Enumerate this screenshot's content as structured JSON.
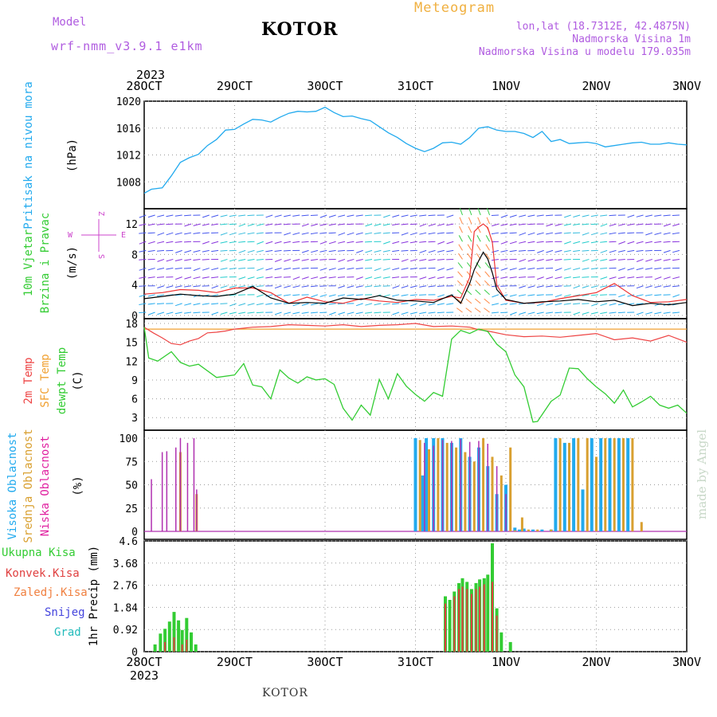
{
  "header": {
    "model_label": "Model",
    "model_name": "wrf-nmm_v3.9.1  e1km",
    "station": "KOTOR",
    "title": "Meteogram",
    "lonlat": "lon,lat (18.7312E, 42.4875N)",
    "elevation": "Nadmorska Visina 1m",
    "model_elevation": "Nadmorska Visina u modelu 179.035m",
    "year_top": "2023",
    "year_bottom": "2023",
    "footer_station": "KOTOR",
    "credit": "made by Angel"
  },
  "colors": {
    "pressure": "#22aaee",
    "temp2m": "#ee4444",
    "sfc": "#f0a030",
    "dewpoint": "#33cc33",
    "cloud_high": "#22aaee",
    "cloud_mid": "#d9a030",
    "cloud_low": "#b030b0",
    "precip_total": "#33cc33",
    "precip_conv": "#e04040",
    "wind_dir_key": "#cc44cc"
  },
  "chart_data": [
    {
      "panel": "pressure",
      "type": "line",
      "ylabel_lines": [
        "Pritisak na nivou mora",
        "(hPa)"
      ],
      "x_ticks": [
        "28OCT",
        "29OCT",
        "30OCT",
        "31OCT",
        "1NOV",
        "2NOV",
        "3NOV"
      ],
      "ylim": [
        1004,
        1020
      ],
      "y_ticks": [
        1008,
        1012,
        1016,
        1020
      ],
      "x": [
        0,
        0.08,
        0.2,
        0.3,
        0.4,
        0.5,
        0.6,
        0.7,
        0.8,
        0.9,
        1.0,
        1.1,
        1.2,
        1.3,
        1.4,
        1.5,
        1.6,
        1.7,
        1.8,
        1.9,
        2.0,
        2.1,
        2.2,
        2.3,
        2.4,
        2.5,
        2.6,
        2.7,
        2.8,
        2.9,
        3.0,
        3.1,
        3.2,
        3.3,
        3.4,
        3.5,
        3.6,
        3.7,
        3.8,
        3.9,
        4.0,
        4.1,
        4.2,
        4.3,
        4.4,
        4.5,
        4.6,
        4.7,
        4.8,
        4.9,
        5.0,
        5.1,
        5.2,
        5.3,
        5.4,
        5.5,
        5.6,
        5.7,
        5.8,
        5.9,
        6.0
      ],
      "y": [
        1006.3,
        1006.9,
        1007.1,
        1008.9,
        1010.9,
        1011.6,
        1012.1,
        1013.4,
        1014.3,
        1015.7,
        1015.8,
        1016.6,
        1017.3,
        1017.2,
        1016.9,
        1017.6,
        1018.2,
        1018.5,
        1018.4,
        1018.5,
        1019.1,
        1018.3,
        1017.7,
        1017.8,
        1017.4,
        1017.1,
        1016.2,
        1015.3,
        1014.6,
        1013.7,
        1013.0,
        1012.5,
        1013.0,
        1013.8,
        1013.9,
        1013.6,
        1014.6,
        1016.0,
        1016.2,
        1015.7,
        1015.5,
        1015.5,
        1015.2,
        1014.6,
        1015.5,
        1014.0,
        1014.3,
        1013.7,
        1013.8,
        1013.9,
        1013.7,
        1013.2,
        1013.4,
        1013.6,
        1013.8,
        1013.9,
        1013.6,
        1013.6,
        1013.8,
        1013.6,
        1013.5
      ]
    },
    {
      "panel": "wind",
      "type": "line",
      "ylabel_lines": [
        "10m Vjetar",
        "Brzina i Pravac",
        "(m/s)"
      ],
      "direction_key": {
        "n": "Z",
        "w": "W",
        "e": "E",
        "s": "S"
      },
      "ylim": [
        0,
        14
      ],
      "y_ticks": [
        0,
        4,
        8,
        12
      ],
      "series": [
        {
          "role": "speed",
          "x": [
            0,
            0.2,
            0.4,
            0.6,
            0.8,
            1.0,
            1.2,
            1.4,
            1.6,
            1.8,
            2.0,
            2.2,
            2.4,
            2.6,
            2.8,
            3.0,
            3.2,
            3.4,
            3.5,
            3.6,
            3.65,
            3.7,
            3.75,
            3.8,
            3.85,
            3.9,
            4.0,
            4.2,
            4.4,
            4.6,
            4.8,
            5.0,
            5.2,
            5.4,
            5.6,
            5.8,
            6.0
          ],
          "y": [
            2.2,
            2.5,
            2.8,
            2.6,
            2.5,
            2.8,
            3.8,
            2.3,
            1.6,
            1.7,
            1.6,
            2.3,
            2.1,
            2.6,
            2.0,
            1.9,
            1.7,
            2.7,
            1.6,
            4.2,
            6.0,
            7.2,
            8.3,
            7.4,
            5.6,
            3.4,
            2.1,
            1.6,
            1.8,
            1.9,
            2.1,
            1.8,
            2.0,
            1.3,
            1.6,
            1.4,
            1.7
          ]
        },
        {
          "role": "gust",
          "x": [
            0,
            0.2,
            0.4,
            0.6,
            0.8,
            1.0,
            1.2,
            1.4,
            1.6,
            1.8,
            2.0,
            2.2,
            2.4,
            2.6,
            2.8,
            3.0,
            3.2,
            3.4,
            3.5,
            3.6,
            3.65,
            3.7,
            3.75,
            3.8,
            3.85,
            3.9,
            4.0,
            4.2,
            4.4,
            4.6,
            4.8,
            5.0,
            5.2,
            5.4,
            5.6,
            5.8,
            6.0
          ],
          "y": [
            2.8,
            3.0,
            3.4,
            3.3,
            3.0,
            3.6,
            3.6,
            3.0,
            1.6,
            2.4,
            1.8,
            1.6,
            2.2,
            1.9,
            1.7,
            2.1,
            2.0,
            2.5,
            2.3,
            5.0,
            11.0,
            11.6,
            12.0,
            11.5,
            9.6,
            4.0,
            2.0,
            1.6,
            1.7,
            2.2,
            2.6,
            3.0,
            4.2,
            2.6,
            1.7,
            1.8,
            2.1
          ]
        }
      ]
    },
    {
      "panel": "temperature",
      "type": "line",
      "ylabel_lines": [
        "2m Temp",
        "SFC Temp",
        "dewpt Temp",
        "(C)"
      ],
      "ylim": [
        1,
        18
      ],
      "y_ticks": [
        3,
        6,
        9,
        12,
        15,
        18
      ],
      "series": [
        {
          "name": "2m Temp",
          "x": [
            0,
            0.1,
            0.2,
            0.3,
            0.4,
            0.5,
            0.6,
            0.7,
            0.8,
            0.9,
            1.0,
            1.2,
            1.4,
            1.6,
            1.8,
            2.0,
            2.2,
            2.4,
            2.6,
            2.8,
            3.0,
            3.2,
            3.4,
            3.6,
            3.7,
            3.8,
            4.0,
            4.2,
            4.4,
            4.6,
            4.8,
            5.0,
            5.2,
            5.4,
            5.6,
            5.8,
            6.0
          ],
          "y": [
            17.4,
            16.5,
            15.7,
            14.8,
            14.6,
            15.2,
            15.6,
            16.5,
            16.6,
            16.8,
            17.1,
            17.4,
            17.5,
            17.8,
            17.7,
            17.6,
            17.8,
            17.5,
            17.7,
            17.8,
            18.0,
            17.5,
            17.6,
            17.4,
            17.0,
            16.8,
            16.2,
            15.9,
            16.0,
            15.8,
            16.1,
            16.4,
            15.4,
            15.7,
            15.2,
            16.1,
            15.0
          ]
        },
        {
          "name": "SFC Temp",
          "x": [
            0,
            6
          ],
          "y": [
            17.1,
            17.1
          ]
        },
        {
          "name": "dewpt Temp",
          "x": [
            0,
            0.05,
            0.15,
            0.3,
            0.4,
            0.5,
            0.6,
            0.8,
            1.0,
            1.1,
            1.2,
            1.3,
            1.4,
            1.5,
            1.6,
            1.7,
            1.8,
            1.9,
            2.0,
            2.1,
            2.2,
            2.3,
            2.4,
            2.5,
            2.6,
            2.7,
            2.8,
            2.9,
            3.0,
            3.1,
            3.2,
            3.3,
            3.4,
            3.5,
            3.6,
            3.7,
            3.8,
            3.9,
            4.0,
            4.1,
            4.2,
            4.3,
            4.35,
            4.5,
            4.6,
            4.7,
            4.8,
            4.9,
            5.0,
            5.1,
            5.2,
            5.3,
            5.4,
            5.5,
            5.6,
            5.7,
            5.8,
            5.9,
            6.0
          ],
          "y": [
            17.4,
            12.5,
            12.0,
            13.5,
            11.8,
            11.2,
            11.5,
            9.4,
            9.8,
            11.6,
            8.2,
            7.9,
            6.0,
            10.6,
            9.3,
            8.5,
            9.5,
            9.0,
            9.2,
            8.3,
            4.5,
            2.6,
            5.0,
            3.4,
            9.1,
            6.0,
            10.0,
            8.0,
            6.7,
            5.6,
            7.0,
            6.4,
            15.5,
            16.9,
            16.4,
            17.1,
            16.7,
            14.7,
            13.5,
            9.8,
            7.9,
            2.3,
            2.4,
            5.6,
            6.6,
            10.9,
            10.8,
            9.2,
            7.9,
            6.8,
            5.3,
            7.4,
            4.7,
            5.5,
            6.4,
            5.0,
            4.5,
            5.0,
            3.7
          ]
        }
      ]
    },
    {
      "panel": "clouds",
      "type": "bar",
      "ylabel_lines": [
        "Visoka Oblacnost",
        "Srednja Oblacnost",
        "Niska Oblacnost",
        "(%)"
      ],
      "ylim": [
        0,
        100
      ],
      "y_ticks": [
        0,
        25,
        50,
        75,
        100
      ],
      "series": [
        {
          "name": "Niska Oblacnost",
          "x": [
            0.08,
            0.2,
            0.25,
            0.35,
            0.4,
            0.48,
            0.55,
            0.58,
            3.1,
            3.2,
            3.3,
            3.4,
            3.5,
            3.6,
            3.7,
            3.8,
            3.9,
            4.0
          ],
          "values": [
            56,
            85,
            86,
            90,
            100,
            95,
            100,
            45,
            95,
            92,
            98,
            97,
            99,
            96,
            97,
            94,
            70,
            40
          ]
        },
        {
          "name": "Srednja Oblacnost",
          "x": [
            0.4,
            0.58,
            3.05,
            3.15,
            3.25,
            3.35,
            3.45,
            3.55,
            3.65,
            3.75,
            3.85,
            3.95,
            4.05,
            4.1,
            4.18,
            4.25,
            4.35,
            4.5,
            4.6,
            4.7,
            4.8,
            4.9,
            5.0,
            5.1,
            5.2,
            5.3,
            5.4,
            5.5
          ],
          "values": [
            85,
            40,
            98,
            88,
            100,
            95,
            90,
            85,
            75,
            100,
            80,
            60,
            90,
            1,
            15,
            2,
            2,
            2,
            100,
            95,
            100,
            100,
            80,
            100,
            100,
            100,
            100,
            10
          ]
        },
        {
          "name": "Visoka Oblacnost",
          "x": [
            3.0,
            3.08,
            3.12,
            3.2,
            3.3,
            3.4,
            3.5,
            3.6,
            3.7,
            3.8,
            3.9,
            4.0,
            4.1,
            4.15,
            4.2,
            4.3,
            4.4,
            4.5,
            4.55,
            4.65,
            4.75,
            4.85,
            4.95,
            5.05,
            5.15,
            5.25,
            5.35
          ],
          "values": [
            100,
            60,
            100,
            100,
            100,
            95,
            100,
            80,
            90,
            70,
            40,
            50,
            4,
            2,
            3,
            2,
            2,
            2,
            100,
            95,
            100,
            45,
            100,
            100,
            100,
            100,
            100
          ]
        }
      ]
    },
    {
      "panel": "precip",
      "type": "bar",
      "ylabel_lines": [
        "1hr Precip (mm)"
      ],
      "legend": [
        "Ukupna Kisa",
        "Konvek.Kisa",
        "Zaledj.Kisa",
        "Snijeg",
        "Grad"
      ],
      "x_ticks": [
        "28OCT",
        "29OCT",
        "30OCT",
        "31OCT",
        "1NOV",
        "2NOV",
        "3NOV"
      ],
      "ylim": [
        0,
        4.6
      ],
      "y_ticks": [
        "0",
        "0.92",
        "1.84",
        "2.76",
        "3.68",
        "4.6"
      ],
      "series": [
        {
          "name": "Ukupna Kisa",
          "x": [
            0.12,
            0.18,
            0.23,
            0.28,
            0.33,
            0.38,
            0.42,
            0.47,
            0.52,
            0.57,
            3.33,
            3.38,
            3.43,
            3.48,
            3.52,
            3.57,
            3.62,
            3.67,
            3.71,
            3.76,
            3.8,
            3.85,
            3.9,
            3.95,
            4.05
          ],
          "values": [
            0.3,
            0.75,
            0.95,
            1.25,
            1.65,
            1.3,
            0.9,
            1.4,
            0.8,
            0.3,
            2.3,
            2.15,
            2.5,
            2.85,
            3.05,
            2.9,
            2.6,
            2.85,
            3.0,
            3.05,
            3.2,
            4.5,
            1.8,
            0.8,
            0.4
          ]
        },
        {
          "name": "Konvek.Kisa",
          "x": [
            0.23,
            0.33,
            0.42,
            0.47,
            3.33,
            3.43,
            3.48,
            3.52,
            3.57,
            3.62,
            3.67,
            3.71,
            3.76,
            3.85,
            3.9
          ],
          "values": [
            0.4,
            0.6,
            0.3,
            0.5,
            2.0,
            2.3,
            2.6,
            2.7,
            2.6,
            2.4,
            2.6,
            2.7,
            2.8,
            2.9,
            1.5
          ]
        }
      ]
    }
  ]
}
